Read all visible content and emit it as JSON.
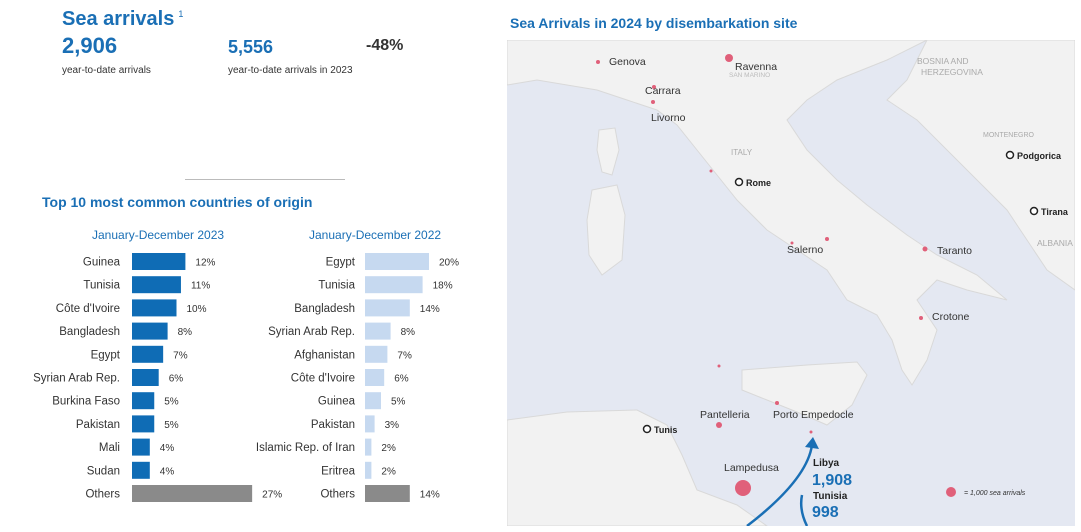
{
  "header": {
    "title": "Sea arrivals",
    "footnote": "1",
    "ytd_value": "2,906",
    "ytd_label": "year-to-date arrivals",
    "prev_value": "5,556",
    "prev_label": "year-to-date arrivals in 2023",
    "change": "-48%"
  },
  "top10_title": "Top 10 most common countries of origin",
  "chart_data": [
    {
      "type": "bar",
      "orientation": "horizontal",
      "title": "January-December 2023",
      "categories": [
        "Guinea",
        "Tunisia",
        "Côte d'Ivoire",
        "Bangladesh",
        "Egypt",
        "Syrian Arab Rep.",
        "Burkina Faso",
        "Pakistan",
        "Mali",
        "Sudan",
        "Others"
      ],
      "values": [
        12,
        11,
        10,
        8,
        7,
        6,
        5,
        5,
        4,
        4,
        27
      ],
      "labels": [
        "12%",
        "11%",
        "10%",
        "8%",
        "7%",
        "6%",
        "5%",
        "5%",
        "4%",
        "4%",
        "27%"
      ],
      "unit": "%",
      "color": "#0f6cb5",
      "others_color": "#8a8a8a"
    },
    {
      "type": "bar",
      "orientation": "horizontal",
      "title": "January-December 2022",
      "categories": [
        "Egypt",
        "Tunisia",
        "Bangladesh",
        "Syrian Arab Rep.",
        "Afghanistan",
        "Côte d'Ivoire",
        "Guinea",
        "Pakistan",
        "Islamic Rep. of Iran",
        "Eritrea",
        "Others"
      ],
      "values": [
        20,
        18,
        14,
        8,
        7,
        6,
        5,
        3,
        2,
        2,
        14
      ],
      "labels": [
        "20%",
        "18%",
        "14%",
        "8%",
        "7%",
        "6%",
        "5%",
        "3%",
        "2%",
        "2%",
        "14%"
      ],
      "unit": "%",
      "color": "#c6d9f0",
      "others_color": "#8a8a8a"
    }
  ],
  "map": {
    "title": "Sea Arrivals in 2024 by disembarkation site",
    "sites": [
      "Genova",
      "Ravenna",
      "Carrara",
      "Livorno",
      "Salerno",
      "Taranto",
      "Crotone",
      "Pantelleria",
      "Porto Empedocle",
      "Lampedusa"
    ],
    "capitals": [
      "Rome",
      "Podgorica",
      "Tirana",
      "Tunis"
    ],
    "countries": [
      "BOSNIA AND HERZEGOVINA",
      "ITALY",
      "ALBANIA",
      "MONTENEGRO",
      "SAN MARINO"
    ],
    "flows": [
      {
        "from": "Libya",
        "value": "1,908"
      },
      {
        "from": "Tunisia",
        "value": "998"
      }
    ],
    "legend": "= 1,000 sea arrivals",
    "dot_color": "#e0607a",
    "accent": "#1a6fb5"
  }
}
